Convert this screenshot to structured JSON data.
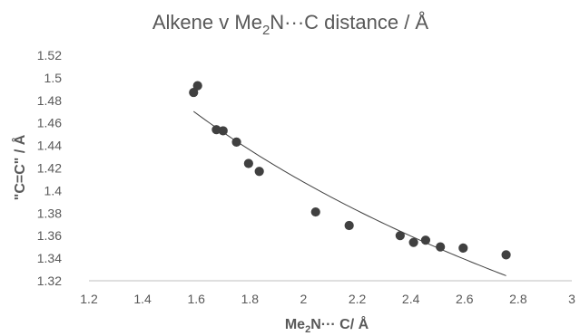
{
  "chart_data": {
    "type": "scatter",
    "title": {
      "prefix": "Alkene v Me",
      "subscript": "2",
      "suffix": "N···C distance / Å"
    },
    "xlabel": {
      "prefix": "Me",
      "subscript": "2",
      "suffix": "N··· C/  Å"
    },
    "ylabel": "\"C=C\" / Å",
    "xlim": [
      1.2,
      3
    ],
    "ylim": [
      1.32,
      1.52
    ],
    "x_ticks": [
      "1.2",
      "1.4",
      "1.6",
      "1.8",
      "2",
      "2.2",
      "2.4",
      "2.6",
      "2.8",
      "3"
    ],
    "y_ticks": [
      "1.32",
      "1.34",
      "1.36",
      "1.38",
      "1.4",
      "1.42",
      "1.44",
      "1.46",
      "1.48",
      "1.5",
      "1.52"
    ],
    "grid": false,
    "legend": "none",
    "trendline": true,
    "series": [
      {
        "points": [
          {
            "x": 1.59,
            "y": 1.487
          },
          {
            "x": 1.605,
            "y": 1.493
          },
          {
            "x": 1.675,
            "y": 1.454
          },
          {
            "x": 1.7,
            "y": 1.453
          },
          {
            "x": 1.75,
            "y": 1.443
          },
          {
            "x": 1.795,
            "y": 1.424
          },
          {
            "x": 1.835,
            "y": 1.417
          },
          {
            "x": 2.045,
            "y": 1.381
          },
          {
            "x": 2.17,
            "y": 1.369
          },
          {
            "x": 2.36,
            "y": 1.36
          },
          {
            "x": 2.41,
            "y": 1.354
          },
          {
            "x": 2.455,
            "y": 1.356
          },
          {
            "x": 2.51,
            "y": 1.35
          },
          {
            "x": 2.595,
            "y": 1.349
          },
          {
            "x": 2.755,
            "y": 1.343
          }
        ]
      }
    ]
  },
  "colors": {
    "marker": "#404040",
    "text": "#595959",
    "axis": "#bfbfbf"
  }
}
